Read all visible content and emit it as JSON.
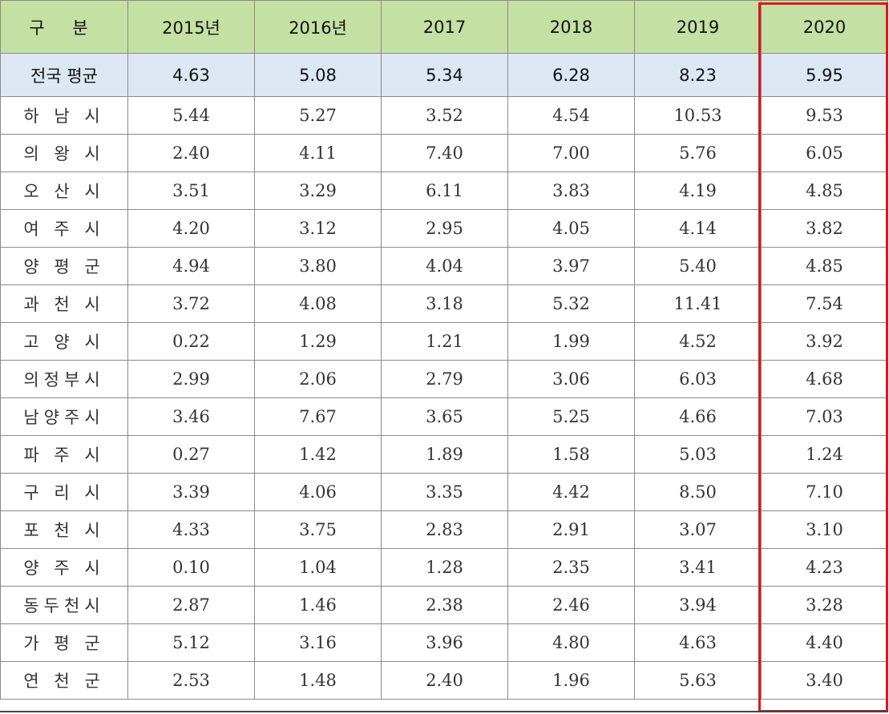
{
  "table": {
    "headers": [
      "구  분",
      "2015년",
      "2016년",
      "2017",
      "2018",
      "2019",
      "2020"
    ],
    "average_row": {
      "label": "전국 평균",
      "values": [
        "4.63",
        "5.08",
        "5.34",
        "6.28",
        "8.23",
        "5.95"
      ]
    },
    "rows": [
      {
        "label": "하 남 시",
        "values": [
          "5.44",
          "5.27",
          "3.52",
          "4.54",
          "10.53",
          "9.53"
        ]
      },
      {
        "label": "의 왕 시",
        "values": [
          "2.40",
          "4.11",
          "7.40",
          "7.00",
          "5.76",
          "6.05"
        ]
      },
      {
        "label": "오 산 시",
        "values": [
          "3.51",
          "3.29",
          "6.11",
          "3.83",
          "4.19",
          "4.85"
        ]
      },
      {
        "label": "여 주 시",
        "values": [
          "4.20",
          "3.12",
          "2.95",
          "4.05",
          "4.14",
          "3.82"
        ]
      },
      {
        "label": "양 평 군",
        "values": [
          "4.94",
          "3.80",
          "4.04",
          "3.97",
          "5.40",
          "4.85"
        ]
      },
      {
        "label": "과 천 시",
        "values": [
          "3.72",
          "4.08",
          "3.18",
          "5.32",
          "11.41",
          "7.54"
        ]
      },
      {
        "label": "고 양 시",
        "values": [
          "0.22",
          "1.29",
          "1.21",
          "1.99",
          "4.52",
          "3.92"
        ]
      },
      {
        "label": "의정부시",
        "values": [
          "2.99",
          "2.06",
          "2.79",
          "3.06",
          "6.03",
          "4.68"
        ]
      },
      {
        "label": "남양주시",
        "values": [
          "3.46",
          "7.67",
          "3.65",
          "5.25",
          "4.66",
          "7.03"
        ]
      },
      {
        "label": "파 주 시",
        "values": [
          "0.27",
          "1.42",
          "1.89",
          "1.58",
          "5.03",
          "1.24"
        ]
      },
      {
        "label": "구 리 시",
        "values": [
          "3.39",
          "4.06",
          "3.35",
          "4.42",
          "8.50",
          "7.10"
        ]
      },
      {
        "label": "포 천 시",
        "values": [
          "4.33",
          "3.75",
          "2.83",
          "2.91",
          "3.07",
          "3.10"
        ]
      },
      {
        "label": "양 주 시",
        "values": [
          "0.10",
          "1.04",
          "1.28",
          "2.35",
          "3.41",
          "4.23"
        ]
      },
      {
        "label": "동두천시",
        "values": [
          "2.87",
          "1.46",
          "2.38",
          "2.46",
          "3.94",
          "3.28"
        ]
      },
      {
        "label": "가 평 군",
        "values": [
          "5.12",
          "3.16",
          "3.96",
          "4.80",
          "4.63",
          "4.40"
        ]
      },
      {
        "label": "연 천 군",
        "values": [
          "2.53",
          "1.48",
          "2.40",
          "1.96",
          "5.63",
          "3.40"
        ]
      }
    ]
  },
  "colors": {
    "header_bg": "#c4e0a2",
    "average_bg": "#dde7f3",
    "highlight_border": "#e0151d"
  }
}
